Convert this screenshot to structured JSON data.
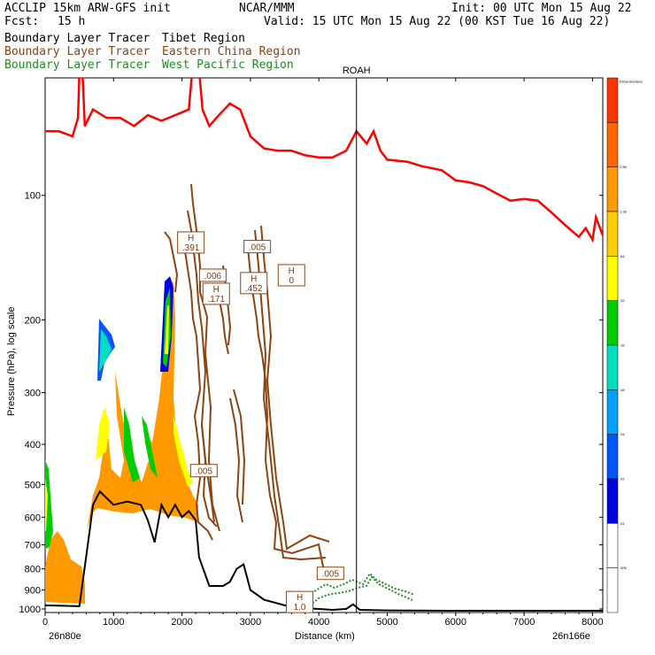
{
  "header": {
    "left1": "ACCLIP 15km ARW-GFS init",
    "center1": "NCAR/MMM",
    "right1": "Init: 00 UTC Mon 15 Aug 22",
    "fcst_label": "Fcst:",
    "fcst_value": "15 h",
    "valid": "Valid: 15 UTC Mon 15 Aug 22 (00 KST Tue 16 Aug 22)",
    "legend": [
      {
        "prefix": "Boundary Layer Tracer",
        "region": "Tibet Region",
        "color": "#000000"
      },
      {
        "prefix": "Boundary Layer Tracer",
        "region": "Eastern China Region",
        "color": "#8b4513"
      },
      {
        "prefix": "Boundary Layer Tracer",
        "region": "West Pacific Region",
        "color": "#228b22"
      }
    ]
  },
  "chart_data": {
    "type": "cross-section",
    "xlabel": "Distance (km)",
    "ylabel": "Pressure (hPa), log scale",
    "x_ticks": [
      "0",
      "1000",
      "2000",
      "3000",
      "4000",
      "5000",
      "6000",
      "7000",
      "8000"
    ],
    "y_ticks": [
      "100",
      "200",
      "300",
      "400",
      "500",
      "600",
      "700",
      "800",
      "900",
      "1000"
    ],
    "xlim": [
      0,
      8150
    ],
    "ylim_hpa": [
      1020,
      52
    ],
    "y_scale": "log",
    "left_endpoint": "26n80e",
    "right_endpoint": "26n166e",
    "marker": {
      "label": "ROAH",
      "distance_km": 4550
    },
    "colorbar": {
      "levels": [
        "Dimensionless",
        "2.56",
        "1.28",
        ".64",
        ".32",
        ".16",
        ".08",
        ".04",
        ".02",
        ".01",
        ".005"
      ],
      "colors": [
        "#ff3300",
        "#ff6600",
        "#ff9900",
        "#ffcc00",
        "#ffff00",
        "#00cc00",
        "#00e0c0",
        "#00a0ff",
        "#0055ff",
        "#0000e0",
        "#ffffff",
        "#ffffff"
      ]
    },
    "series": [
      {
        "name": "Tropopause",
        "color": "#ff0000",
        "points": [
          [
            0,
            70
          ],
          [
            200,
            70
          ],
          [
            400,
            72
          ],
          [
            480,
            65
          ],
          [
            520,
            40
          ],
          [
            580,
            68
          ],
          [
            700,
            62
          ],
          [
            900,
            65
          ],
          [
            1100,
            65
          ],
          [
            1300,
            68
          ],
          [
            1500,
            64
          ],
          [
            1700,
            66
          ],
          [
            1900,
            64
          ],
          [
            2100,
            62
          ],
          [
            2200,
            40
          ],
          [
            2300,
            62
          ],
          [
            2400,
            68
          ],
          [
            2500,
            65
          ],
          [
            2700,
            60
          ],
          [
            2850,
            62
          ],
          [
            3000,
            72
          ],
          [
            3200,
            77
          ],
          [
            3400,
            78
          ],
          [
            3600,
            78
          ],
          [
            3800,
            80
          ],
          [
            4000,
            81
          ],
          [
            4200,
            81
          ],
          [
            4400,
            78
          ],
          [
            4550,
            70
          ],
          [
            4700,
            75
          ],
          [
            4800,
            70
          ],
          [
            4900,
            78
          ],
          [
            5000,
            82
          ],
          [
            5300,
            83
          ],
          [
            5500,
            85
          ],
          [
            5800,
            87
          ],
          [
            6000,
            92
          ],
          [
            6200,
            93
          ],
          [
            6400,
            95
          ],
          [
            6600,
            99
          ],
          [
            6800,
            103
          ],
          [
            7000,
            102
          ],
          [
            7200,
            103
          ],
          [
            7400,
            110
          ],
          [
            7600,
            118
          ],
          [
            7800,
            126
          ],
          [
            7900,
            120
          ],
          [
            8000,
            128
          ],
          [
            8050,
            113
          ],
          [
            8150,
            125
          ]
        ]
      },
      {
        "name": "Terrain",
        "color": "#000000",
        "points": [
          [
            0,
            980
          ],
          [
            500,
            985
          ],
          [
            650,
            650
          ],
          [
            700,
            560
          ],
          [
            800,
            520
          ],
          [
            1000,
            560
          ],
          [
            1200,
            550
          ],
          [
            1400,
            560
          ],
          [
            1500,
            610
          ],
          [
            1600,
            690
          ],
          [
            1700,
            560
          ],
          [
            1800,
            600
          ],
          [
            1900,
            560
          ],
          [
            2000,
            600
          ],
          [
            2100,
            580
          ],
          [
            2200,
            610
          ],
          [
            2250,
            750
          ],
          [
            2400,
            880
          ],
          [
            2600,
            880
          ],
          [
            2700,
            860
          ],
          [
            2800,
            800
          ],
          [
            2900,
            780
          ],
          [
            3000,
            900
          ],
          [
            3200,
            950
          ],
          [
            3500,
            980
          ],
          [
            3800,
            995
          ],
          [
            4200,
            1005
          ],
          [
            4400,
            1000
          ],
          [
            4500,
            975
          ],
          [
            4600,
            1005
          ],
          [
            5000,
            1008
          ],
          [
            6000,
            1010
          ],
          [
            7000,
            1010
          ],
          [
            8150,
            1010
          ]
        ]
      }
    ],
    "labels": [
      {
        "text": "H",
        "value": ".391",
        "distance_km": 2130,
        "hpa": 130
      },
      {
        "text": "",
        "value": ".005",
        "distance_km": 3100,
        "hpa": 133
      },
      {
        "text": "",
        "value": ".006",
        "distance_km": 2450,
        "hpa": 156
      },
      {
        "text": "H",
        "value": ".452",
        "distance_km": 3050,
        "hpa": 163
      },
      {
        "text": "H",
        "value": "0",
        "distance_km": 3600,
        "hpa": 156
      },
      {
        "text": "H",
        "value": ".171",
        "distance_km": 2500,
        "hpa": 173
      },
      {
        "text": "",
        "value": ".005",
        "distance_km": 2320,
        "hpa": 463
      },
      {
        "text": "",
        "value": ".005",
        "distance_km": 4170,
        "hpa": 820
      },
      {
        "text": "H",
        "value": "1.0",
        "distance_km": 3720,
        "hpa": 962
      }
    ]
  }
}
